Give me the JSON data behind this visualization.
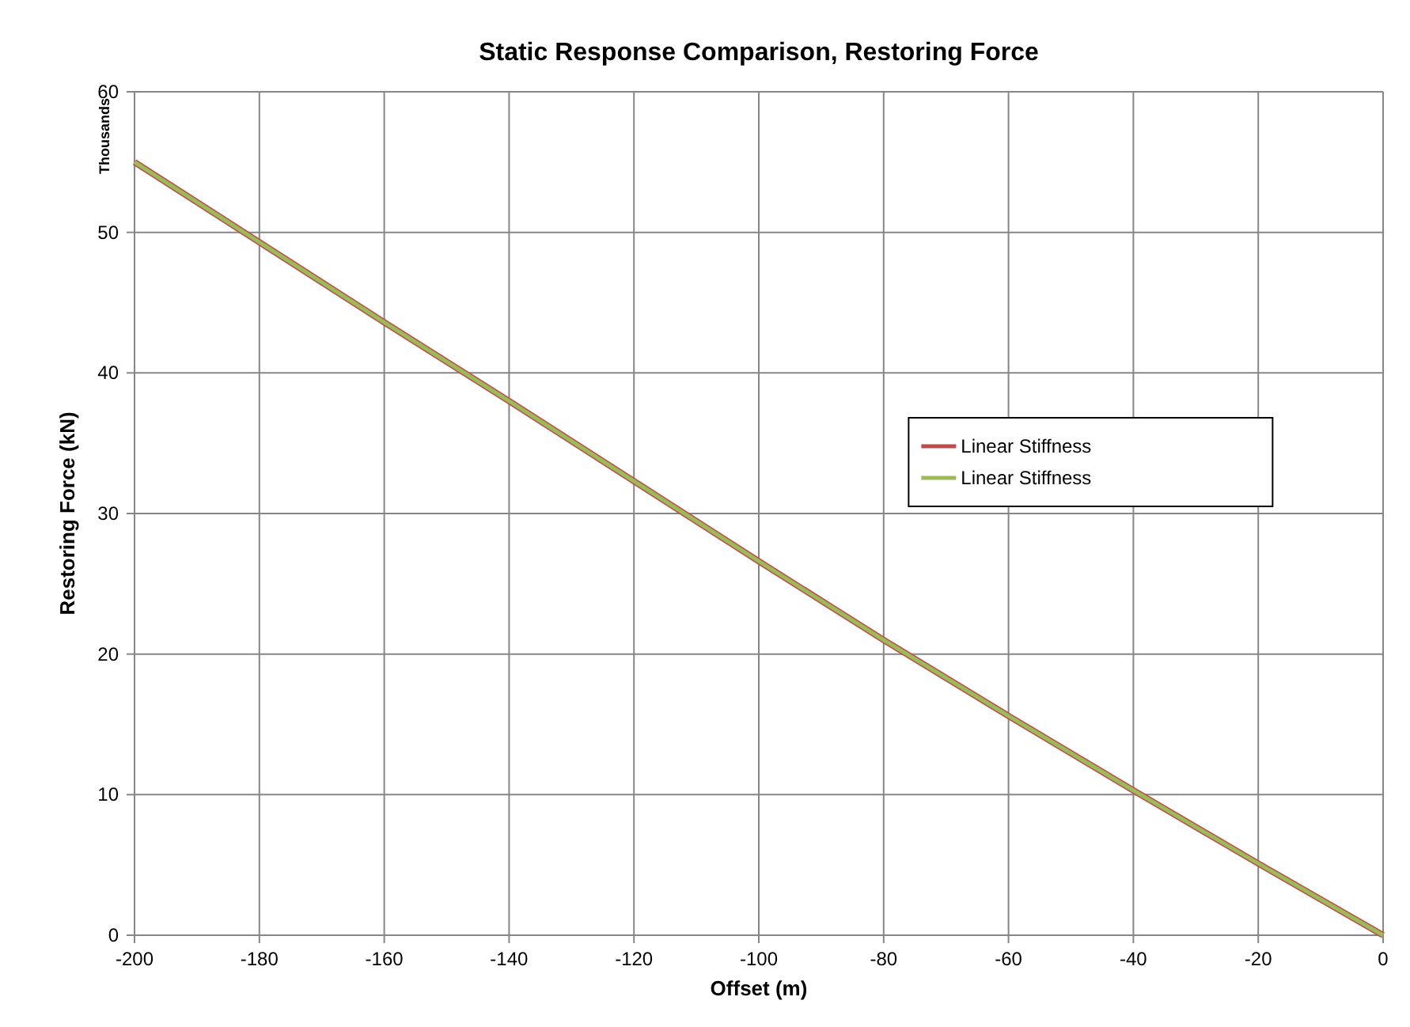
{
  "chart_data": {
    "type": "line",
    "title": "Static Response Comparison, Restoring Force",
    "xlabel": "Offset (m)",
    "ylabel": "Restoring Force (kN)",
    "annotations": [
      "Thousands"
    ],
    "x": [
      -200,
      -180,
      -160,
      -140,
      -120,
      -100,
      -80,
      -60,
      -40,
      -20,
      0
    ],
    "series": [
      {
        "name": "Linear Stiffness",
        "color": "#be4b48",
        "values": [
          55,
          49.3,
          43.6,
          38,
          32.3,
          26.6,
          21,
          15.6,
          10.3,
          5.1,
          0
        ]
      },
      {
        "name": "Linear Stiffness",
        "color": "#9bbb59",
        "values": [
          55,
          49.3,
          43.6,
          38,
          32.3,
          26.6,
          21,
          15.6,
          10.3,
          5.1,
          0
        ]
      }
    ],
    "xlim": [
      -200,
      0
    ],
    "xticks": [
      -200,
      -180,
      -160,
      -140,
      -120,
      -100,
      -80,
      -60,
      -40,
      -20,
      0
    ],
    "ylim": [
      0,
      60
    ],
    "yticks": [
      0,
      10,
      20,
      30,
      40,
      50,
      60
    ],
    "grid": true,
    "legend": "right"
  }
}
